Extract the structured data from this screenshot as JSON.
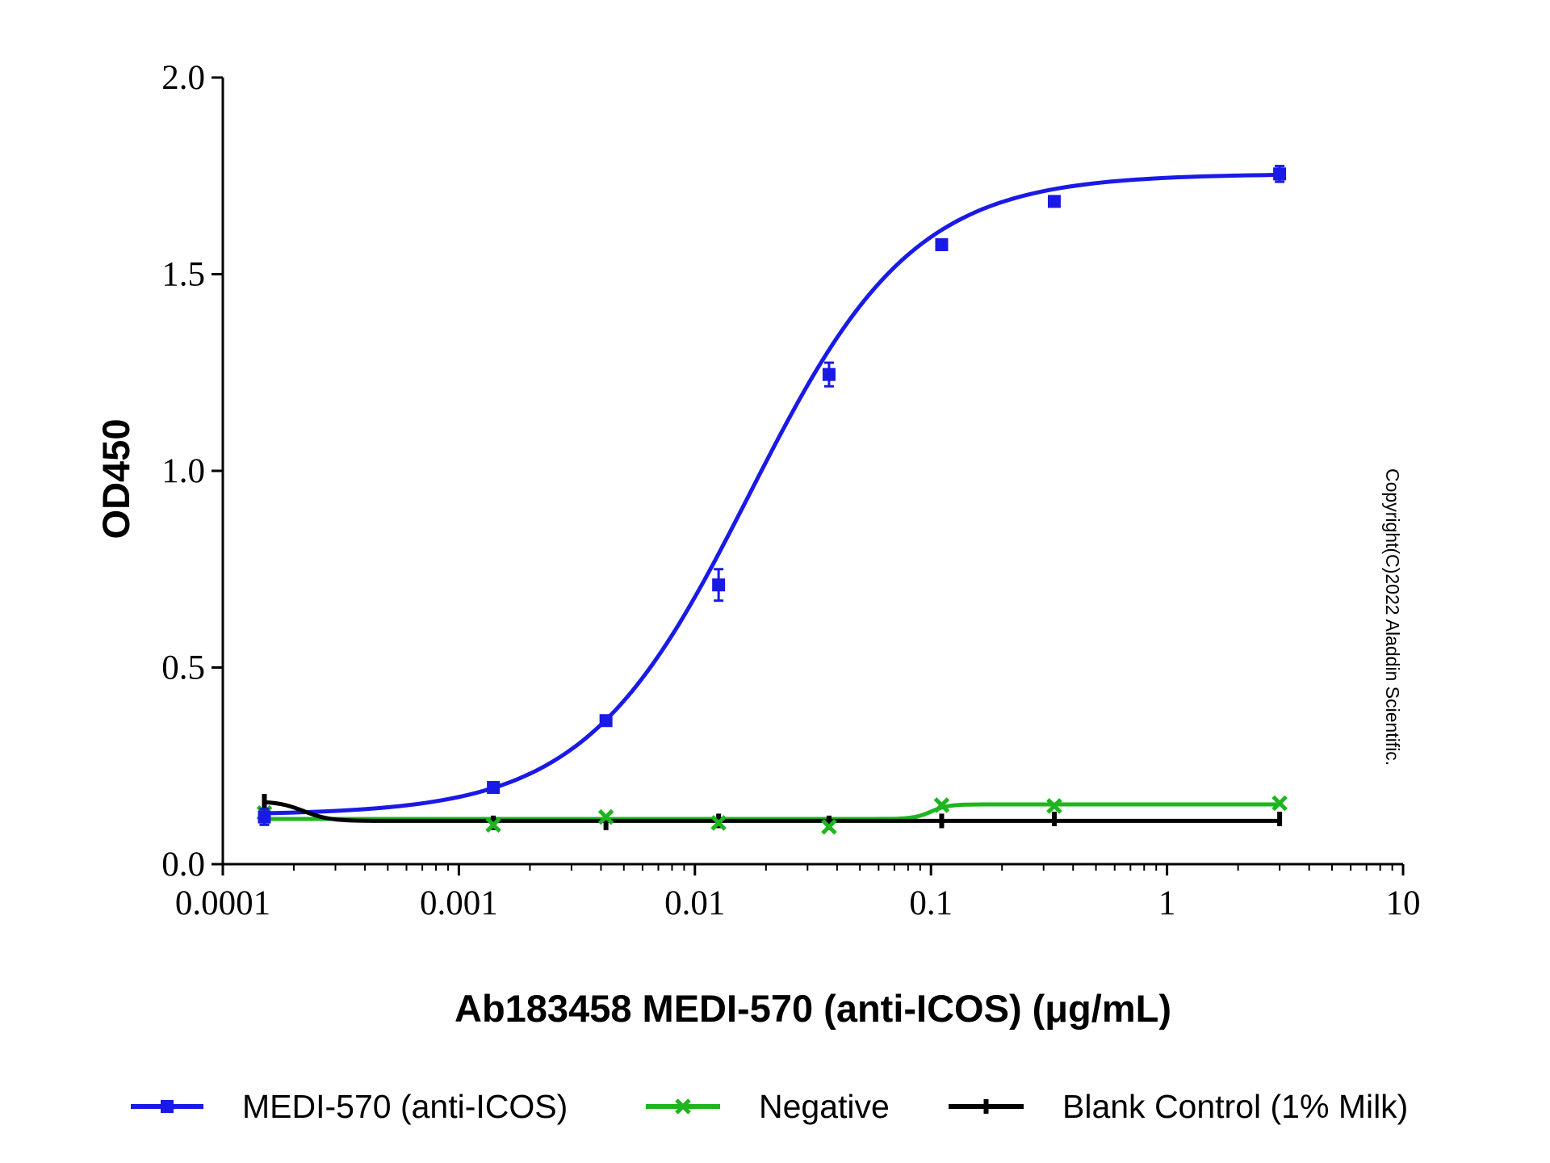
{
  "chart_data": {
    "type": "line",
    "xlabel": "Ab183458 MEDI-570 (anti-ICOS) (μg/mL)",
    "ylabel": "OD450",
    "x_scale": "log",
    "xlim": [
      0.0001,
      10
    ],
    "ylim": [
      0,
      2
    ],
    "x_ticks": [
      0.0001,
      0.001,
      0.01,
      0.1,
      1,
      10
    ],
    "x_tick_labels": [
      "0.0001",
      "0.001",
      "0.01",
      "0.1",
      "1",
      "10"
    ],
    "y_ticks": [
      0,
      0.5,
      1,
      1.5,
      2
    ],
    "y_tick_labels": [
      "0.0",
      "0.5",
      "1.0",
      "1.5",
      "2.0"
    ],
    "grid": false,
    "legend_position": "bottom",
    "copyright": "Copyright(C)2022 Aladdin Scientific.",
    "series": [
      {
        "name": "MEDI-570 (anti-ICOS)",
        "color": "#1a1ae6",
        "marker": "square",
        "x": [
          0.00015,
          0.0014,
          0.0042,
          0.0126,
          0.037,
          0.111,
          0.333,
          3.0
        ],
        "y": [
          0.12,
          0.195,
          0.365,
          0.71,
          1.245,
          1.575,
          1.685,
          1.755
        ],
        "err": [
          0.02,
          0.005,
          0.01,
          0.04,
          0.03,
          0.008,
          0.01,
          0.02
        ]
      },
      {
        "name": "Negative",
        "color": "#1fb51f",
        "marker": "x",
        "x": [
          0.00015,
          0.0014,
          0.0042,
          0.0126,
          0.037,
          0.111,
          0.333,
          3.0
        ],
        "y": [
          0.13,
          0.1,
          0.12,
          0.105,
          0.095,
          0.15,
          0.148,
          0.155
        ]
      },
      {
        "name": "Blank Control (1% Milk)",
        "color": "#000000",
        "marker": "bar",
        "x": [
          0.00015,
          0.0014,
          0.0042,
          0.0126,
          0.037,
          0.111,
          0.333,
          3.0
        ],
        "y": [
          0.16,
          0.105,
          0.105,
          0.11,
          0.105,
          0.11,
          0.115,
          0.115
        ]
      }
    ]
  }
}
